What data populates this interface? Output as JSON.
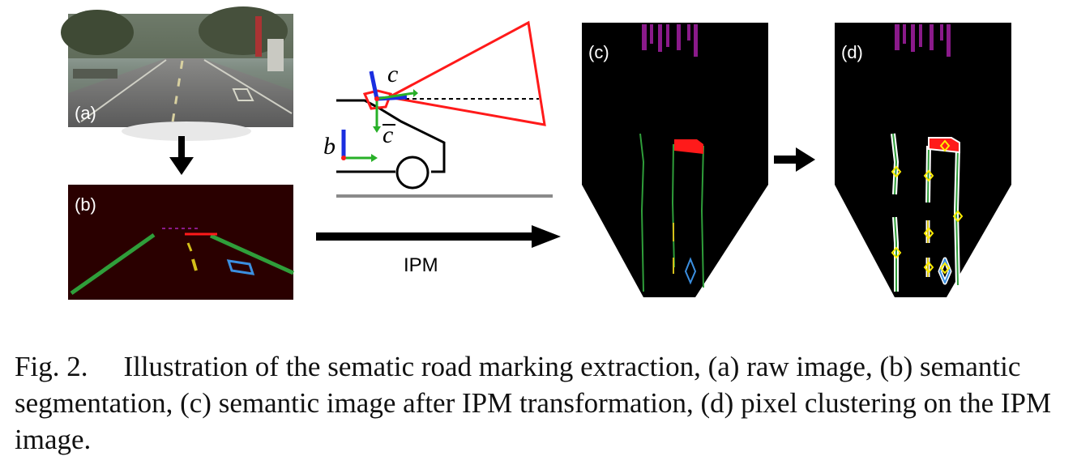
{
  "figure": {
    "panels": {
      "a": "(a)",
      "b": "(b)",
      "c": "(c)",
      "d": "(d)"
    },
    "ipm_label": "IPM",
    "frame_labels": {
      "camera": "c",
      "camera_bar": "c",
      "body": "b"
    }
  },
  "caption": {
    "number": "Fig. 2.",
    "text": "Illustration of the sematic road marking extraction, (a) raw image, (b) semantic segmentation, (c) semantic image after IPM transformation, (d) pixel clustering on the IPM image."
  },
  "colors": {
    "lane_green": "#2f9e3a",
    "stop_red": "#ff1a1a",
    "dash_yellow": "#d4c01a",
    "arrow_blue": "#3b8fe0",
    "marker_purple": "#8a1a8a",
    "seg_background": "#2a0000",
    "cluster_point": "#ffee00"
  }
}
